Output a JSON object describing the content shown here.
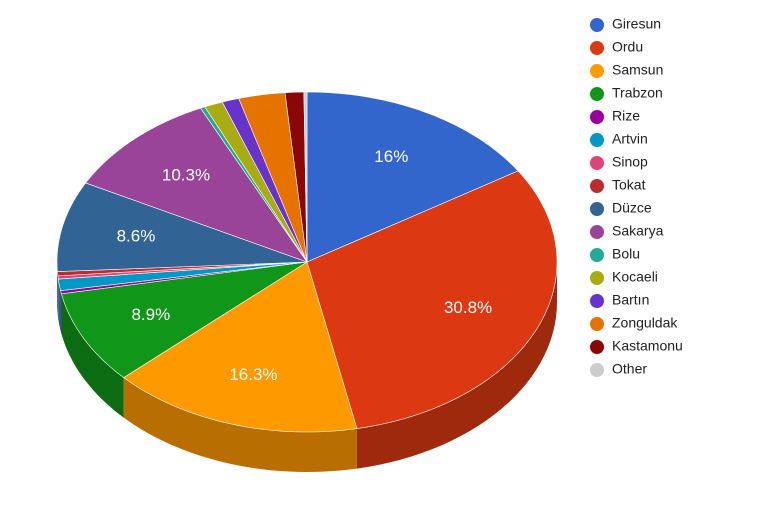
{
  "chart_data": {
    "type": "pie3d",
    "categories": [
      "Giresun",
      "Ordu",
      "Samsun",
      "Trabzon",
      "Rize",
      "Artvin",
      "Sinop",
      "Tokat",
      "Düzce",
      "Sakarya",
      "Bolu",
      "Kocaeli",
      "Bartın",
      "Zonguldak",
      "Kastamonu",
      "Other"
    ],
    "values": [
      16,
      30.8,
      16.3,
      8.9,
      0.3,
      1.1,
      0.3,
      0.4,
      8.6,
      10.3,
      0.3,
      1.2,
      1.1,
      3.0,
      1.2,
      0.2
    ],
    "value_labels": [
      "16%",
      "30.8%",
      "16.3%",
      "8.9%",
      null,
      null,
      null,
      null,
      "8.6%",
      "10.3%",
      null,
      null,
      null,
      null,
      null,
      null
    ],
    "colors": [
      "#3366cc",
      "#dc3912",
      "#ff9900",
      "#109618",
      "#990099",
      "#0099c6",
      "#dd4477",
      "#b82e2e",
      "#316395",
      "#994499",
      "#22aa99",
      "#aaaa11",
      "#6633cc",
      "#e67300",
      "#8b0707",
      "#cccccc"
    ],
    "legend": "right"
  }
}
